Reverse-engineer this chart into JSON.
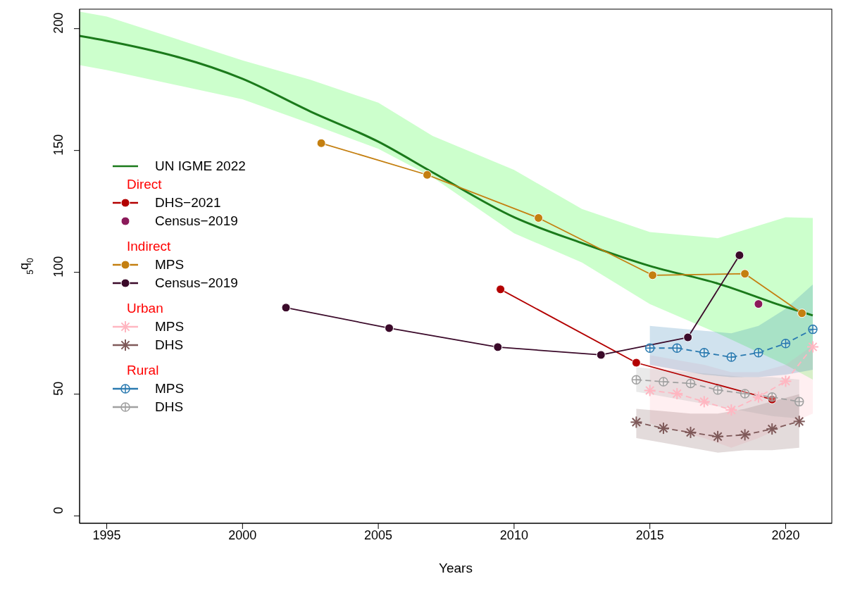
{
  "chart_data": {
    "type": "line",
    "xlabel": "Years",
    "ylabel": "$_{5}$q$_{0}$",
    "xlim": [
      1994,
      2021.7
    ],
    "ylim": [
      -3,
      208
    ],
    "xticks": [
      1995,
      2000,
      2005,
      2010,
      2015,
      2020
    ],
    "yticks": [
      0,
      50,
      100,
      150,
      200
    ],
    "grid": false,
    "legend": "left",
    "annotations": [
      "Direct",
      "Indirect",
      "Urban",
      "Rural"
    ],
    "series": [
      {
        "name": "UN IGME 2022",
        "color": "#1b7a1b",
        "marker": "none",
        "line_style": "solid",
        "x": [
          1994,
          1995,
          2000,
          2002.5,
          2005,
          2007,
          2010,
          2012.5,
          2015,
          2017.5,
          2020,
          2021
        ],
        "values": [
          197,
          195,
          179.4,
          166,
          153.6,
          141,
          122.6,
          112,
          102.6,
          95.4,
          85.8,
          82.3
        ],
        "lower": [
          185,
          183,
          171,
          161,
          150.7,
          139,
          116,
          104,
          87,
          75,
          62,
          56
        ],
        "upper": [
          207,
          205,
          187,
          179,
          169.6,
          156,
          142,
          126,
          116.5,
          114,
          122.6,
          122.3
        ]
      },
      {
        "name": "DHS−2021",
        "color": "#b30000",
        "marker": "circle",
        "line_style": "solid",
        "x": [
          2009.5,
          2014.5,
          2019.5
        ],
        "values": [
          93,
          62.9,
          47.8
        ]
      },
      {
        "name": "Census−2019",
        "type": "scatter",
        "color": "#8b1a5a",
        "marker": "circle",
        "x": [
          2019
        ],
        "values": [
          87
        ]
      },
      {
        "name": "MPS",
        "color": "#c47f10",
        "marker": "circle",
        "line_style": "solid",
        "x": [
          2002.9,
          2006.8,
          2010.9,
          2015.1,
          2018.5,
          2020.6
        ],
        "values": [
          153,
          140,
          122.3,
          98.8,
          99.4,
          83.2
        ]
      },
      {
        "name": "Census−2019",
        "color": "#3b0a2a",
        "marker": "circle",
        "line_style": "solid",
        "x": [
          2001.6,
          2005.4,
          2009.4,
          2013.2,
          2016.4,
          2018.3
        ],
        "values": [
          85.5,
          77.1,
          69.3,
          66.1,
          73.3,
          107
        ]
      },
      {
        "name": "MPS",
        "color": "#ffb6c1",
        "marker": "cross",
        "line_style": "dashed",
        "x": [
          2015,
          2016,
          2017,
          2018,
          2019,
          2020,
          2021
        ],
        "values": [
          51.5,
          50.2,
          46.9,
          43.5,
          48.8,
          55.3,
          69.4
        ],
        "lower": [
          38,
          35,
          32,
          28,
          32,
          37,
          42
        ],
        "upper": [
          66,
          64,
          62,
          59,
          59,
          62,
          70
        ]
      },
      {
        "name": "DHS",
        "color": "#7f5a5a",
        "marker": "cross",
        "line_style": "dashed",
        "x": [
          2014.5,
          2015.5,
          2016.5,
          2017.5,
          2018.5,
          2019.5,
          2020.5
        ],
        "values": [
          38.5,
          36,
          34.3,
          32.6,
          33.3,
          35.7,
          38.8
        ],
        "lower": [
          32,
          30,
          28,
          26,
          27,
          27,
          28
        ],
        "upper": [
          44,
          43,
          42,
          42,
          44,
          47,
          50
        ]
      },
      {
        "name": "MPS",
        "color": "#2a7ab0",
        "marker": "circle",
        "line_style": "dashed",
        "x": [
          2015,
          2016,
          2017,
          2018,
          2019,
          2020,
          2021
        ],
        "values": [
          68.9,
          68.9,
          67,
          65.2,
          67,
          70.8,
          76.6
        ],
        "lower": [
          62,
          60,
          58,
          57,
          57,
          58,
          60
        ],
        "upper": [
          78,
          77,
          76,
          75,
          78,
          85,
          95
        ]
      },
      {
        "name": "DHS",
        "color": "#a0a0a0",
        "marker": "circle",
        "line_style": "dashed",
        "x": [
          2014.5,
          2015.5,
          2016.5,
          2017.5,
          2018.5,
          2019.5,
          2020.5
        ],
        "values": [
          55.9,
          55.1,
          54.4,
          51.7,
          50.2,
          48.8,
          46.9
        ],
        "lower": [
          51,
          49,
          47,
          45,
          43,
          41,
          40
        ],
        "upper": [
          61,
          60,
          59,
          58,
          57,
          57,
          56
        ]
      }
    ]
  }
}
